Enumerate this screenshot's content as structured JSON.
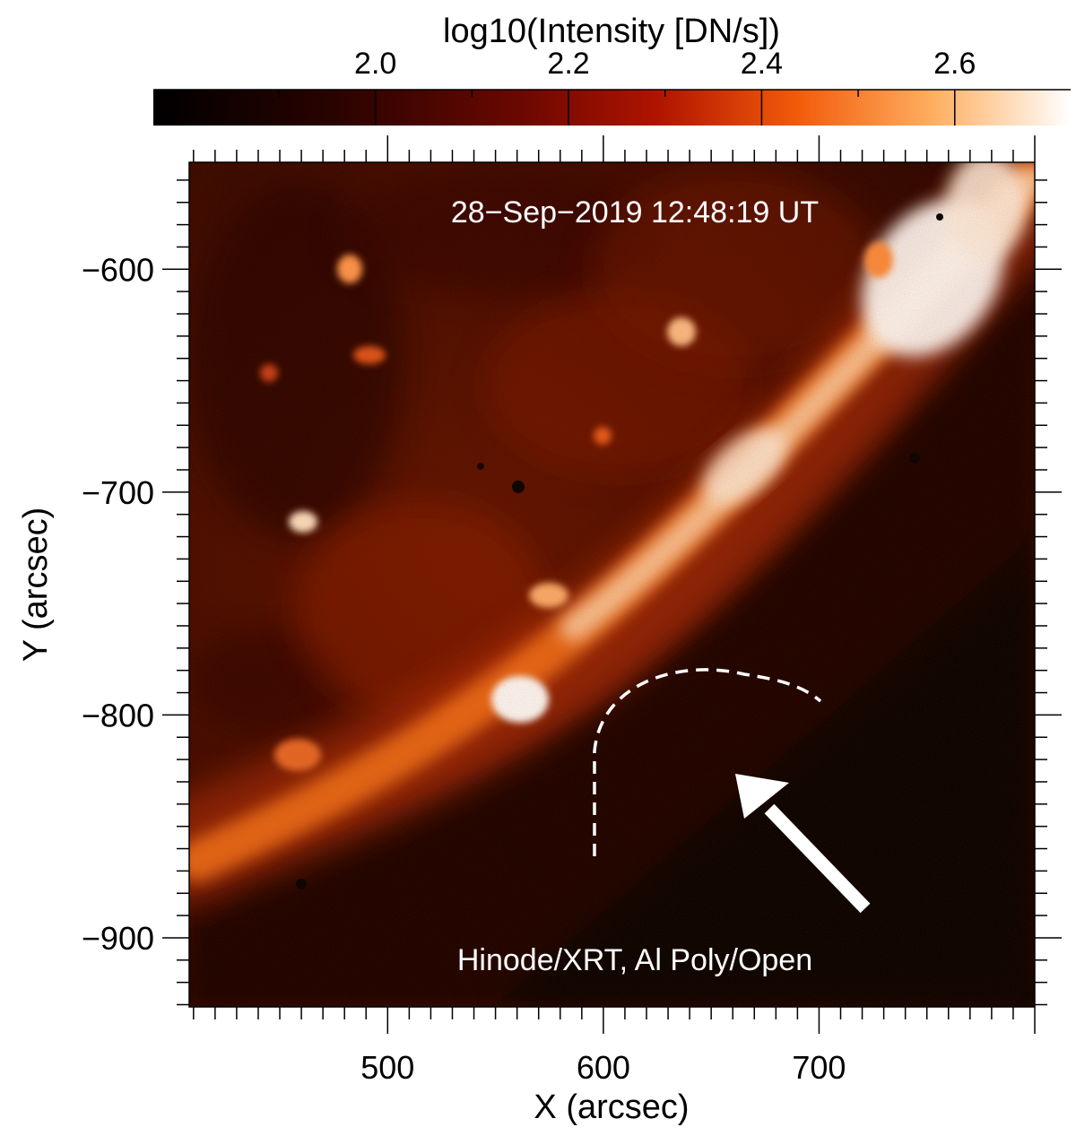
{
  "colorbar": {
    "title": "log10(Intensity [DN/s])",
    "range": [
      1.77,
      2.72
    ],
    "ticks": [
      {
        "value": 1.9,
        "label": ""
      },
      {
        "value": 2.0,
        "label": "2.0"
      },
      {
        "value": 2.1,
        "label": ""
      },
      {
        "value": 2.2,
        "label": "2.2"
      },
      {
        "value": 2.3,
        "label": ""
      },
      {
        "value": 2.4,
        "label": "2.4"
      },
      {
        "value": 2.5,
        "label": ""
      },
      {
        "value": 2.6,
        "label": "2.6"
      }
    ],
    "colors": [
      "#000000",
      "#3a0400",
      "#7a0b00",
      "#c02a00",
      "#ff7a10",
      "#ffb870",
      "#ffffff"
    ]
  },
  "image": {
    "timestamp": "28−Sep−2019 12:48:19 UT",
    "instrument": "Hinode/XRT, Al Poly/Open",
    "xlabel": "X (arcsec)",
    "ylabel": "Y (arcsec)",
    "xlim": [
      408,
      800
    ],
    "ylim": [
      -931,
      -552
    ],
    "xticks": [
      {
        "value": 500,
        "label": "500"
      },
      {
        "value": 600,
        "label": "600"
      },
      {
        "value": 700,
        "label": "700"
      }
    ],
    "yticks": [
      {
        "value": -600,
        "label": "−600"
      },
      {
        "value": -700,
        "label": "−700"
      },
      {
        "value": -800,
        "label": "−800"
      },
      {
        "value": -900,
        "label": "−900"
      }
    ]
  }
}
